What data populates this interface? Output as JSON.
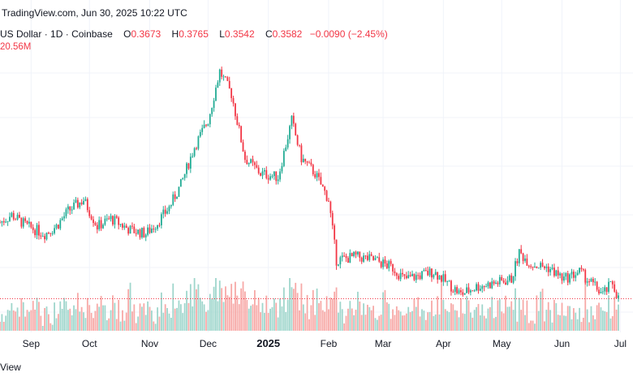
{
  "watermark": "TradingView.com, Jun 30, 2025 10:22 UTC",
  "symbol": {
    "name": "US Dollar",
    "interval": "1D",
    "exchange": "Coinbase",
    "sep": "·",
    "o_label": "O",
    "o_value": "0.3673",
    "h_label": "H",
    "h_value": "0.3765",
    "l_label": "L",
    "l_value": "0.3542",
    "c_label": "C",
    "c_value": "0.3582",
    "change": "−0.0090 (−2.45%)"
  },
  "volume_text": "20.56M",
  "x_axis": [
    {
      "label": "Sep",
      "bold": false
    },
    {
      "label": "Oct",
      "bold": false
    },
    {
      "label": "Nov",
      "bold": false
    },
    {
      "label": "Dec",
      "bold": false
    },
    {
      "label": "2025",
      "bold": true
    },
    {
      "label": "Feb",
      "bold": false
    },
    {
      "label": "Mar",
      "bold": false
    },
    {
      "label": "Apr",
      "bold": false
    },
    {
      "label": "May",
      "bold": false
    },
    {
      "label": "Jun",
      "bold": false
    },
    {
      "label": "Jul",
      "bold": false
    }
  ],
  "footer": "View",
  "colors": {
    "up": "#22ab94",
    "down": "#f23645",
    "up_volume": "#9fd6cc",
    "down_volume": "#f7a9a7",
    "grid": "#f0f3fa",
    "last_price_line": "#f23645"
  },
  "chart_data": {
    "type": "candlestick",
    "x_start": "2024-08-16",
    "x_end": "2025-06-30",
    "ylim": [
      0.28,
      1.02
    ],
    "price_points": [
      [
        "2024-08-16",
        0.56
      ],
      [
        "2024-08-22",
        0.58
      ],
      [
        "2024-08-30",
        0.55
      ],
      [
        "2024-09-08",
        0.53
      ],
      [
        "2024-09-14",
        0.55
      ],
      [
        "2024-09-20",
        0.59
      ],
      [
        "2024-09-28",
        0.62
      ],
      [
        "2024-10-05",
        0.55
      ],
      [
        "2024-10-12",
        0.57
      ],
      [
        "2024-10-22",
        0.54
      ],
      [
        "2024-10-30",
        0.53
      ],
      [
        "2024-11-05",
        0.56
      ],
      [
        "2024-11-11",
        0.6
      ],
      [
        "2024-11-17",
        0.66
      ],
      [
        "2024-11-24",
        0.76
      ],
      [
        "2024-12-01",
        0.83
      ],
      [
        "2024-12-07",
        0.96
      ],
      [
        "2024-12-13",
        0.9
      ],
      [
        "2024-12-20",
        0.73
      ],
      [
        "2024-12-28",
        0.69
      ],
      [
        "2025-01-06",
        0.68
      ],
      [
        "2025-01-13",
        0.83
      ],
      [
        "2025-01-18",
        0.73
      ],
      [
        "2025-01-25",
        0.69
      ],
      [
        "2025-02-01",
        0.62
      ],
      [
        "2025-02-05",
        0.46
      ],
      [
        "2025-02-15",
        0.47
      ],
      [
        "2025-02-25",
        0.46
      ],
      [
        "2025-03-06",
        0.44
      ],
      [
        "2025-03-12",
        0.41
      ],
      [
        "2025-03-20",
        0.42
      ],
      [
        "2025-03-27",
        0.43
      ],
      [
        "2025-04-03",
        0.4
      ],
      [
        "2025-04-10",
        0.37
      ],
      [
        "2025-04-18",
        0.39
      ],
      [
        "2025-04-28",
        0.4
      ],
      [
        "2025-05-06",
        0.41
      ],
      [
        "2025-05-10",
        0.48
      ],
      [
        "2025-05-16",
        0.45
      ],
      [
        "2025-05-25",
        0.44
      ],
      [
        "2025-06-02",
        0.41
      ],
      [
        "2025-06-10",
        0.43
      ],
      [
        "2025-06-16",
        0.4
      ],
      [
        "2025-06-22",
        0.37
      ],
      [
        "2025-06-27",
        0.4
      ],
      [
        "2025-06-30",
        0.3582
      ]
    ],
    "last_close": 0.3582
  }
}
